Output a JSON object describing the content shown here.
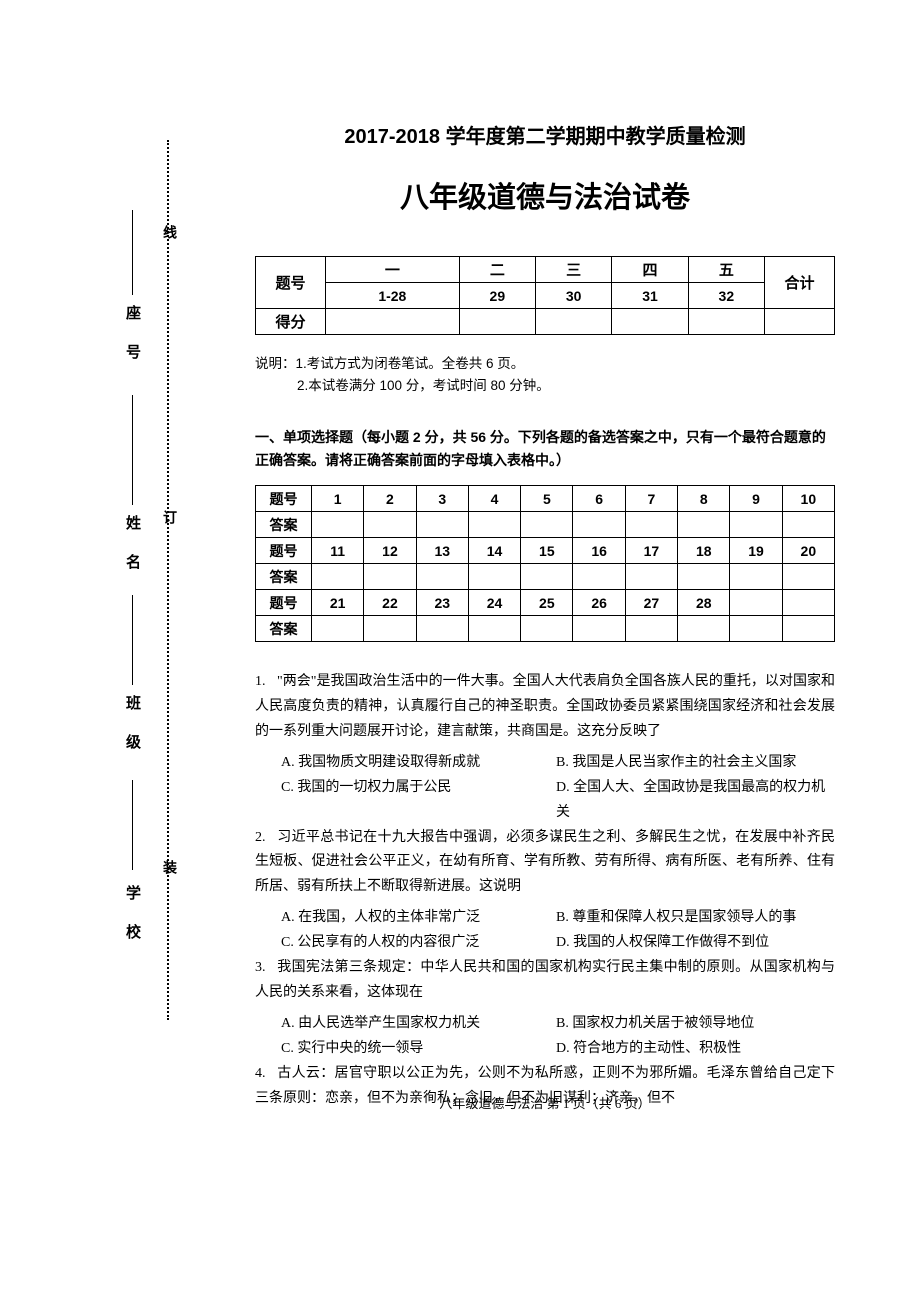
{
  "header": {
    "pretitle": "2017-2018 学年度第二学期期中教学质量检测",
    "title": "八年级道德与法治试卷"
  },
  "sidebar": {
    "seat": "座 号",
    "name": "姓 名",
    "class": "班 级",
    "school": "学 校",
    "xian": "线",
    "ding": "订",
    "zhuang": "装"
  },
  "score_table": {
    "row_label": "题号",
    "score_label": "得分",
    "sections": [
      "一",
      "二",
      "三",
      "四",
      "五"
    ],
    "subsections": [
      "1-28",
      "29",
      "30",
      "31",
      "32"
    ],
    "total": "合计"
  },
  "instructions": {
    "label": "说明：",
    "line1": "1.考试方式为闭卷笔试。全卷共 6 页。",
    "line2": "2.本试卷满分 100 分，考试时间 80 分钟。"
  },
  "section1": {
    "header": "一、单项选择题（每小题 2 分，共 56 分。下列各题的备选答案之中，只有一个最符合题意的正确答案。请将正确答案前面的字母填入表格中。）",
    "row_label": "题号",
    "answer_label": "答案",
    "numbers_r1": [
      "1",
      "2",
      "3",
      "4",
      "5",
      "6",
      "7",
      "8",
      "9",
      "10"
    ],
    "numbers_r2": [
      "11",
      "12",
      "13",
      "14",
      "15",
      "16",
      "17",
      "18",
      "19",
      "20"
    ],
    "numbers_r3": [
      "21",
      "22",
      "23",
      "24",
      "25",
      "26",
      "27",
      "28",
      "",
      ""
    ]
  },
  "questions": [
    {
      "num": "1.",
      "text": "\"两会\"是我国政治生活中的一件大事。全国人大代表肩负全国各族人民的重托，以对国家和人民高度负责的精神，认真履行自己的神圣职责。全国政协委员紧紧围绕国家经济和社会发展的一系列重大问题展开讨论，建言献策，共商国是。这充分反映了",
      "opts": [
        {
          "a": "A. 我国物质文明建设取得新成就",
          "b": "B. 我国是人民当家作主的社会主义国家"
        },
        {
          "a": "C. 我国的一切权力属于公民",
          "b": "D. 全国人大、全国政协是我国最高的权力机关"
        }
      ]
    },
    {
      "num": "2.",
      "text": "习近平总书记在十九大报告中强调，必须多谋民生之利、多解民生之忧，在发展中补齐民生短板、促进社会公平正义，在幼有所育、学有所教、劳有所得、病有所医、老有所养、住有所居、弱有所扶上不断取得新进展。这说明",
      "opts": [
        {
          "a": "A. 在我国，人权的主体非常广泛",
          "b": "B. 尊重和保障人权只是国家领导人的事"
        },
        {
          "a": "C. 公民享有的人权的内容很广泛",
          "b": "D. 我国的人权保障工作做得不到位"
        }
      ]
    },
    {
      "num": "3.",
      "text": "我国宪法第三条规定：中华人民共和国的国家机构实行民主集中制的原则。从国家机构与人民的关系来看，这体现在",
      "opts": [
        {
          "a": "A. 由人民选举产生国家权力机关",
          "b": "B. 国家权力机关居于被领导地位"
        },
        {
          "a": "C. 实行中央的统一领导",
          "b": "D. 符合地方的主动性、积极性"
        }
      ]
    },
    {
      "num": "4.",
      "text": "古人云：居官守职以公正为先，公则不为私所惑，正则不为邪所媚。毛泽东曾给自己定下三条原则：恋亲，但不为亲徇私；念旧，但不为旧谋利；济亲，但不",
      "opts": []
    }
  ],
  "footer": "八年级道德与法治  第 1 页（共 6 页）"
}
